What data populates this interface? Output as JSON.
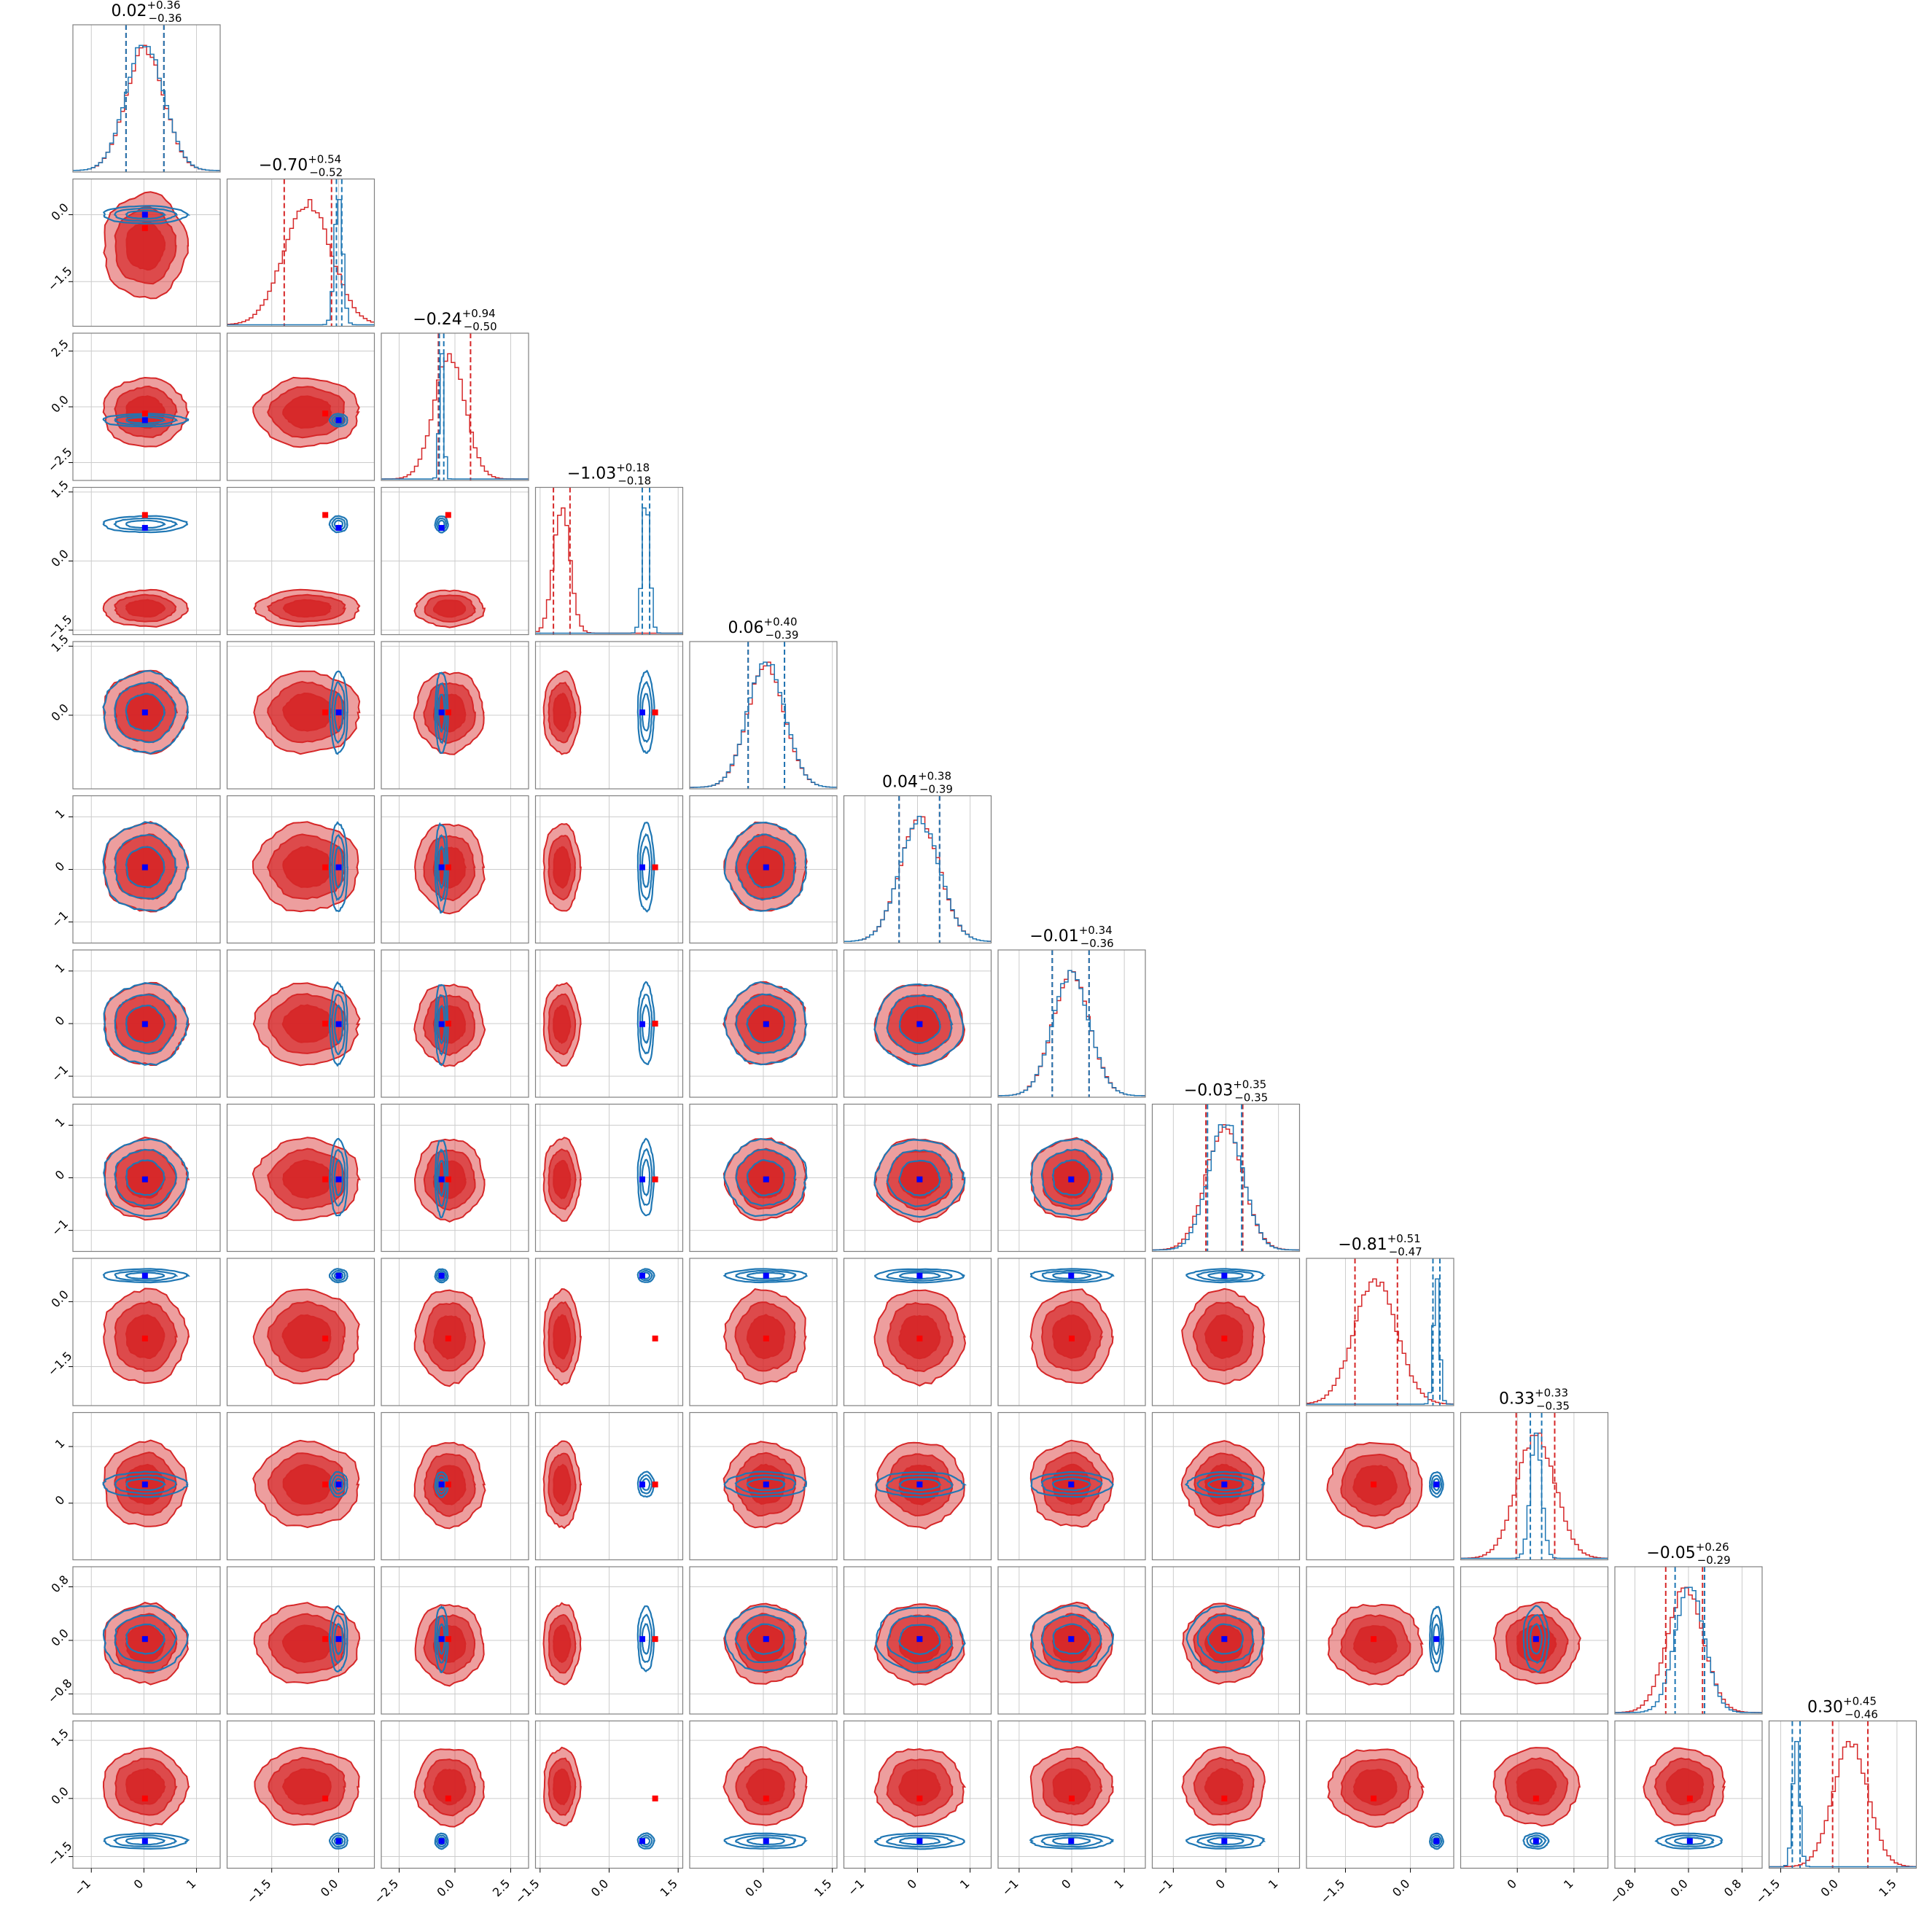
{
  "chart_data": {
    "type": "corner",
    "n_params": 12,
    "series": [
      {
        "name": "",
        "color": "#d62728",
        "style": "filled-contours"
      },
      {
        "name": "",
        "color": "#1f77b4",
        "style": "line-contours"
      }
    ],
    "truth_colors": {
      "red_marker": "#ff0000",
      "blue_marker": "#0000ff"
    },
    "parameters": [
      {
        "title": {
          "main": "0.02",
          "plus": "+0.36",
          "minus": "−0.36"
        },
        "ticks": [
          -1,
          0,
          1
        ],
        "tick_labels": [
          "−1",
          "0",
          "1"
        ],
        "range": [
          -1.35,
          1.45
        ],
        "red": {
          "mean": 0.02,
          "sd": 0.36,
          "q": [
            -0.34,
            0.38
          ]
        },
        "blue": {
          "mean": 0.02,
          "sd": 0.36,
          "q": [
            -0.34,
            0.38
          ]
        },
        "marker_red": 0.02,
        "marker_blue": 0.02
      },
      {
        "title": {
          "main": "−0.70",
          "plus": "+0.54",
          "minus": "−0.52"
        },
        "ticks": [
          -1.5,
          0.0
        ],
        "tick_labels": [
          "−1.5",
          "0.0"
        ],
        "range": [
          -2.5,
          0.8
        ],
        "red": {
          "mean": -0.7,
          "sd": 0.53,
          "q": [
            -1.22,
            -0.16
          ]
        },
        "blue": {
          "mean": 0.0,
          "sd": 0.09,
          "q": [
            -0.05,
            0.07
          ]
        },
        "marker_red": -0.3,
        "marker_blue": 0.0
      },
      {
        "title": {
          "main": "−0.24",
          "plus": "+0.94",
          "minus": "−0.50"
        },
        "ticks": [
          -2.5,
          0.0,
          2.5
        ],
        "tick_labels": [
          "−2.5",
          "0.0",
          "2.5"
        ],
        "range": [
          -3.3,
          3.3
        ],
        "red": {
          "mean": -0.24,
          "sd": 0.7,
          "q": [
            -0.74,
            0.7
          ]
        },
        "blue": {
          "mean": -0.6,
          "sd": 0.1,
          "q": [
            -0.7,
            -0.5
          ]
        },
        "marker_red": -0.3,
        "marker_blue": -0.6
      },
      {
        "title": {
          "main": "−1.03",
          "plus": "+0.18",
          "minus": "−0.18"
        },
        "ticks": [
          -1.5,
          0.0,
          1.5
        ],
        "tick_labels": [
          "−1.5",
          "0.0",
          "1.5"
        ],
        "range": [
          -1.6,
          1.6
        ],
        "red": {
          "mean": -1.03,
          "sd": 0.18,
          "q": [
            -1.21,
            -0.85
          ]
        },
        "blue": {
          "mean": 0.8,
          "sd": 0.08,
          "q": [
            0.72,
            0.88
          ]
        },
        "marker_red": 1.0,
        "marker_blue": 0.72
      },
      {
        "title": {
          "main": "0.06",
          "plus": "+0.40",
          "minus": "−0.39"
        },
        "ticks": [
          0.0,
          1.5
        ],
        "tick_labels": [
          "0.0",
          "1.5"
        ],
        "range": [
          -1.6,
          1.6
        ],
        "red": {
          "mean": 0.06,
          "sd": 0.4,
          "q": [
            -0.33,
            0.46
          ]
        },
        "blue": {
          "mean": 0.06,
          "sd": 0.4,
          "q": [
            -0.33,
            0.46
          ]
        },
        "marker_red": 0.06,
        "marker_blue": 0.06
      },
      {
        "title": {
          "main": "0.04",
          "plus": "+0.38",
          "minus": "−0.39"
        },
        "ticks": [
          -1,
          0,
          1
        ],
        "tick_labels": [
          "−1",
          "0",
          "1"
        ],
        "range": [
          -1.4,
          1.4
        ],
        "red": {
          "mean": 0.04,
          "sd": 0.38,
          "q": [
            -0.35,
            0.42
          ]
        },
        "blue": {
          "mean": 0.04,
          "sd": 0.38,
          "q": [
            -0.35,
            0.42
          ]
        },
        "marker_red": 0.04,
        "marker_blue": 0.04
      },
      {
        "title": {
          "main": "−0.01",
          "plus": "+0.34",
          "minus": "−0.36"
        },
        "ticks": [
          -1,
          0,
          1
        ],
        "tick_labels": [
          "−1",
          "0",
          "1"
        ],
        "range": [
          -1.4,
          1.4
        ],
        "red": {
          "mean": -0.01,
          "sd": 0.35,
          "q": [
            -0.37,
            0.33
          ]
        },
        "blue": {
          "mean": -0.01,
          "sd": 0.35,
          "q": [
            -0.37,
            0.33
          ]
        },
        "marker_red": 0.0,
        "marker_blue": -0.01
      },
      {
        "title": {
          "main": "−0.03",
          "plus": "+0.35",
          "minus": "−0.35"
        },
        "ticks": [
          -1,
          0,
          1
        ],
        "tick_labels": [
          "−1",
          "0",
          "1"
        ],
        "range": [
          -1.4,
          1.4
        ],
        "red": {
          "mean": -0.03,
          "sd": 0.35,
          "q": [
            -0.38,
            0.32
          ]
        },
        "blue": {
          "mean": 0.0,
          "sd": 0.33,
          "q": [
            -0.35,
            0.3
          ]
        },
        "marker_red": -0.03,
        "marker_blue": -0.03
      },
      {
        "title": {
          "main": "−0.81",
          "plus": "+0.51",
          "minus": "−0.47"
        },
        "ticks": [
          -1.5,
          0.0
        ],
        "tick_labels": [
          "−1.5",
          "0.0"
        ],
        "range": [
          -2.4,
          1.0
        ],
        "red": {
          "mean": -0.81,
          "sd": 0.49,
          "q": [
            -1.28,
            -0.3
          ]
        },
        "blue": {
          "mean": 0.6,
          "sd": 0.07,
          "q": [
            0.52,
            0.68
          ]
        },
        "marker_red": -0.85,
        "marker_blue": 0.6
      },
      {
        "title": {
          "main": "0.33",
          "plus": "+0.33",
          "minus": "−0.35"
        },
        "ticks": [
          0,
          1
        ],
        "tick_labels": [
          "0",
          "1"
        ],
        "range": [
          -1.0,
          1.6
        ],
        "red": {
          "mean": 0.33,
          "sd": 0.34,
          "q": [
            -0.02,
            0.66
          ]
        },
        "blue": {
          "mean": 0.33,
          "sd": 0.1,
          "q": [
            0.23,
            0.43
          ]
        },
        "marker_red": 0.33,
        "marker_blue": 0.33
      },
      {
        "title": {
          "main": "−0.05",
          "plus": "+0.26",
          "minus": "−0.29"
        },
        "ticks": [
          -0.8,
          0.0,
          0.8
        ],
        "tick_labels": [
          "−0.8",
          "0.0",
          "0.8"
        ],
        "range": [
          -1.1,
          1.1
        ],
        "red": {
          "mean": -0.05,
          "sd": 0.27,
          "q": [
            -0.34,
            0.21
          ]
        },
        "blue": {
          "mean": 0.02,
          "sd": 0.22,
          "q": [
            -0.2,
            0.24
          ]
        },
        "marker_red": 0.02,
        "marker_blue": 0.02
      },
      {
        "title": {
          "main": "0.30",
          "plus": "+0.45",
          "minus": "−0.46"
        },
        "ticks": [
          -1.5,
          0.0,
          1.5
        ],
        "tick_labels": [
          "−1.5",
          "0.0",
          "1.5"
        ],
        "range": [
          -1.8,
          2.0
        ],
        "red": {
          "mean": 0.3,
          "sd": 0.45,
          "q": [
            -0.16,
            0.75
          ]
        },
        "blue": {
          "mean": -1.1,
          "sd": 0.09,
          "q": [
            -1.2,
            -1.0
          ]
        },
        "marker_red": 0.0,
        "marker_blue": -1.1
      }
    ]
  }
}
